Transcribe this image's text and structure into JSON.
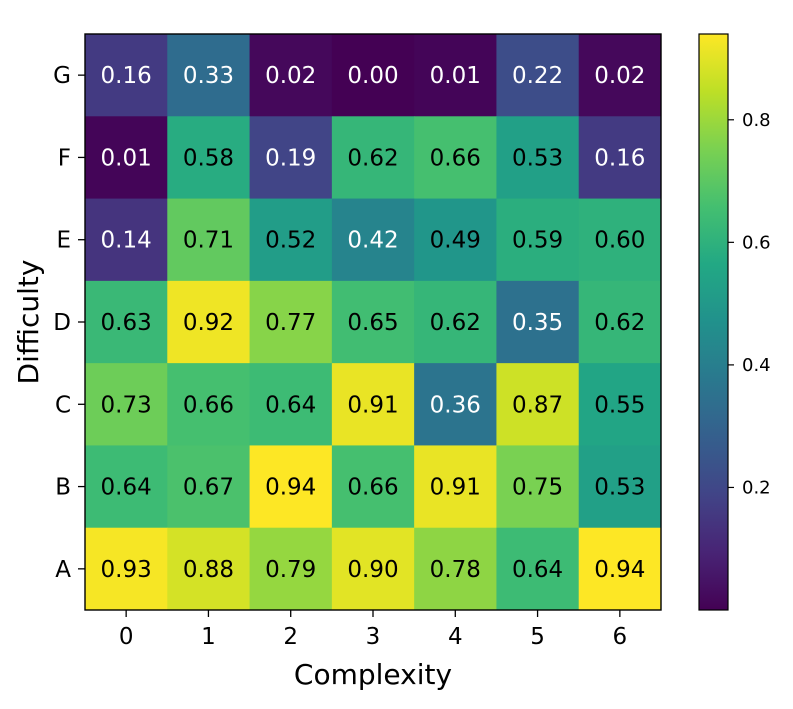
{
  "chart_data": {
    "type": "heatmap",
    "title": "",
    "xlabel": "Complexity",
    "ylabel": "Difficulty",
    "x_categories": [
      "0",
      "1",
      "2",
      "3",
      "4",
      "5",
      "6"
    ],
    "y_categories": [
      "G",
      "F",
      "E",
      "D",
      "C",
      "B",
      "A"
    ],
    "values": [
      [
        0.16,
        0.33,
        0.02,
        0.0,
        0.01,
        0.22,
        0.02
      ],
      [
        0.01,
        0.58,
        0.19,
        0.62,
        0.66,
        0.53,
        0.16
      ],
      [
        0.14,
        0.71,
        0.52,
        0.42,
        0.49,
        0.59,
        0.6
      ],
      [
        0.63,
        0.92,
        0.77,
        0.65,
        0.62,
        0.35,
        0.62
      ],
      [
        0.73,
        0.66,
        0.64,
        0.91,
        0.36,
        0.87,
        0.55
      ],
      [
        0.64,
        0.67,
        0.94,
        0.66,
        0.91,
        0.75,
        0.53
      ],
      [
        0.93,
        0.88,
        0.79,
        0.9,
        0.78,
        0.64,
        0.94
      ]
    ],
    "value_labels": [
      [
        "0.16",
        "0.33",
        "0.02",
        "0.00",
        "0.01",
        "0.22",
        "0.02"
      ],
      [
        "0.01",
        "0.58",
        "0.19",
        "0.62",
        "0.66",
        "0.53",
        "0.16"
      ],
      [
        "0.14",
        "0.71",
        "0.52",
        "0.42",
        "0.49",
        "0.59",
        "0.60"
      ],
      [
        "0.63",
        "0.92",
        "0.77",
        "0.65",
        "0.62",
        "0.35",
        "0.62"
      ],
      [
        "0.73",
        "0.66",
        "0.64",
        "0.91",
        "0.36",
        "0.87",
        "0.55"
      ],
      [
        "0.64",
        "0.67",
        "0.94",
        "0.66",
        "0.91",
        "0.75",
        "0.53"
      ],
      [
        "0.93",
        "0.88",
        "0.79",
        "0.90",
        "0.78",
        "0.64",
        "0.94"
      ]
    ],
    "colormap": "viridis",
    "vmin": 0.0,
    "vmax": 0.94,
    "colorbar": {
      "ticks": [
        0.2,
        0.4,
        0.6,
        0.8
      ],
      "tick_labels": [
        "0.2",
        "0.4",
        "0.6",
        "0.8"
      ]
    },
    "text_color_dark": "#000000",
    "text_color_light": "#ffffff"
  }
}
